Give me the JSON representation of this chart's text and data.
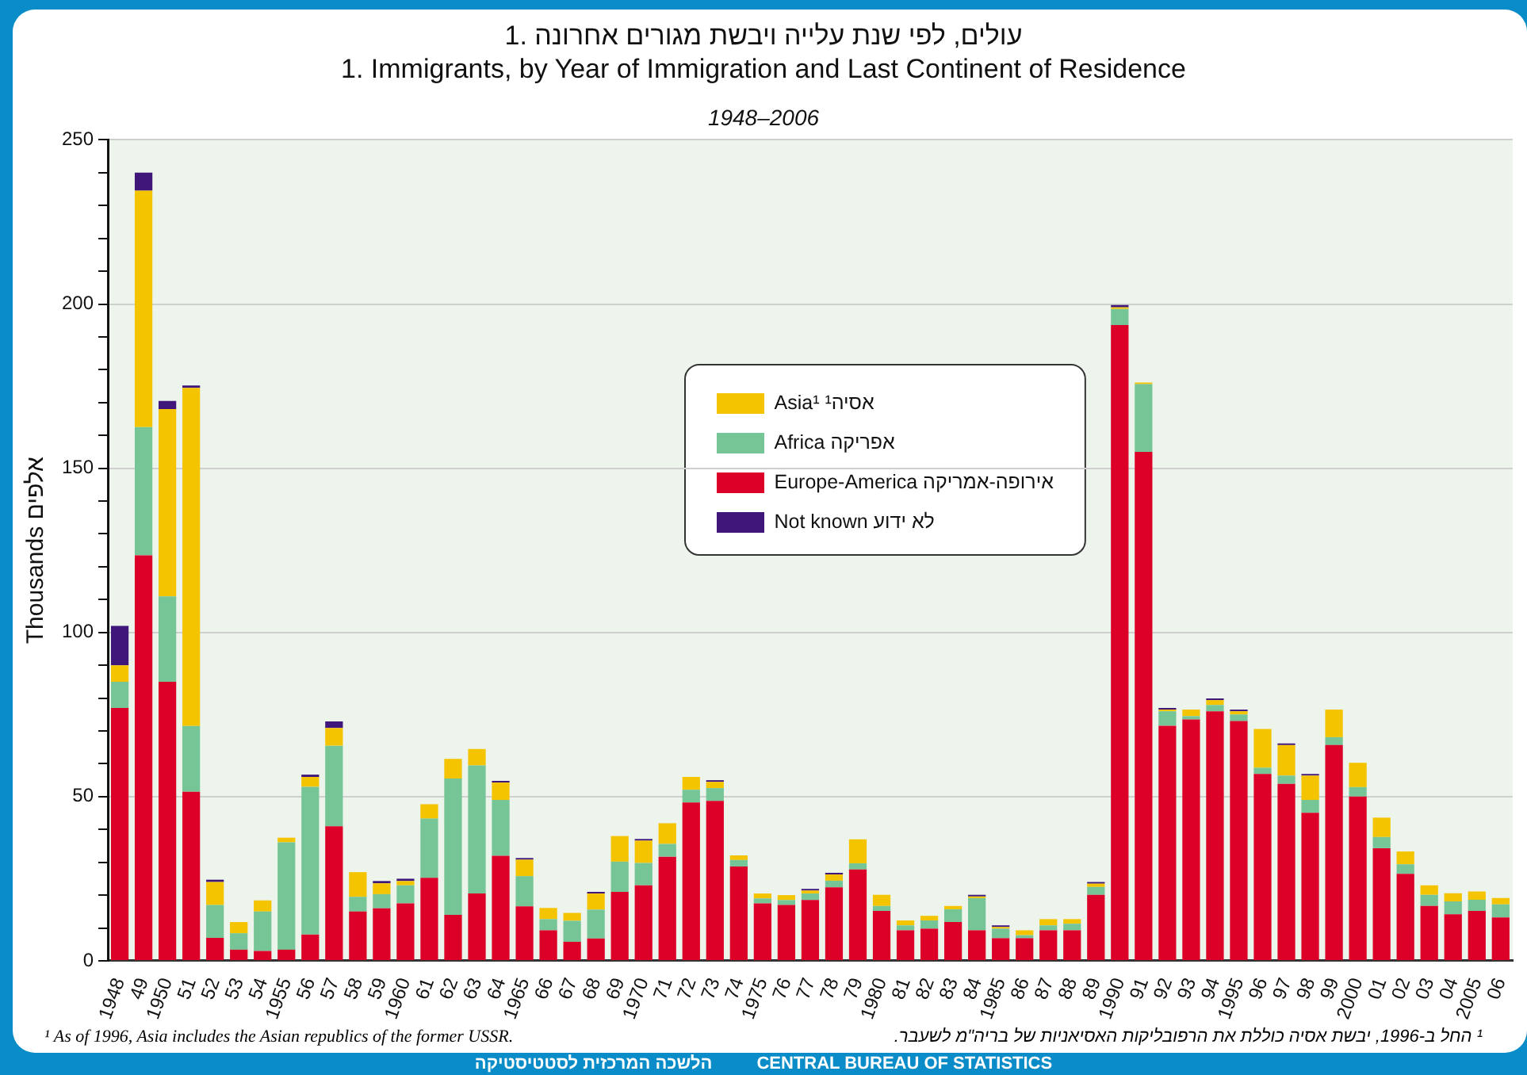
{
  "chart_data": {
    "type": "bar",
    "stacked": true,
    "title": "1. עולים, לפי שנת עלייה ויבשת מגורים אחרונה\n1. Immigrants, by Year of Immigration and Last Continent of Residence",
    "subtitle": "1948–2006",
    "ylabel": "Thousands אלפים",
    "categories": [
      "1948",
      "49",
      "1950",
      "51",
      "52",
      "53",
      "54",
      "1955",
      "56",
      "57",
      "58",
      "59",
      "1960",
      "61",
      "62",
      "63",
      "64",
      "1965",
      "66",
      "67",
      "68",
      "69",
      "1970",
      "71",
      "72",
      "73",
      "74",
      "1975",
      "76",
      "77",
      "78",
      "79",
      "1980",
      "81",
      "82",
      "83",
      "84",
      "1985",
      "86",
      "87",
      "88",
      "89",
      "1990",
      "91",
      "92",
      "93",
      "94",
      "1995",
      "96",
      "97",
      "98",
      "99",
      "2000",
      "01",
      "02",
      "03",
      "04",
      "2005",
      "06"
    ],
    "series": [
      {
        "name": "Europe-America אירופה-אמריקה",
        "color": "#dc0028",
        "values": [
          77,
          123.5,
          85,
          51.5,
          7,
          3.4,
          3,
          3.4,
          8,
          41,
          15,
          16,
          17.5,
          25.3,
          14,
          20.5,
          32,
          16.6,
          9.3,
          5.8,
          6.8,
          21,
          23,
          31.7,
          48.2,
          48.7,
          28.7,
          17.5,
          17,
          18.5,
          22.4,
          27.8,
          15.2,
          9.3,
          9.8,
          11.8,
          9.3,
          6.9,
          6.9,
          9.3,
          9.3,
          20.1,
          193.6,
          155,
          71.6,
          73.5,
          76,
          73,
          56.9,
          53.9,
          45.1,
          65.7,
          50,
          34.3,
          26.5,
          16.7,
          14.2,
          15.2,
          13.2
        ]
      },
      {
        "name": "Africa אפריקה",
        "color": "#76c597",
        "values": [
          8,
          39,
          26,
          20,
          10,
          5,
          12,
          32.7,
          45,
          24.5,
          4.5,
          4.3,
          5.5,
          18,
          41.5,
          39,
          17,
          9.2,
          3.4,
          6.4,
          8.8,
          9.2,
          6.8,
          3.9,
          3.9,
          3.9,
          2,
          1.5,
          1.5,
          2,
          2,
          1.9,
          1.5,
          1.5,
          2.5,
          3.9,
          9.8,
          2.9,
          0.9,
          1.5,
          2,
          2.4,
          4.9,
          20.6,
          4.4,
          1,
          1.9,
          2,
          1.9,
          2.5,
          3.9,
          2.4,
          2.9,
          3.4,
          2.9,
          3.4,
          3.9,
          3.4,
          4
        ]
      },
      {
        "name": "Asia¹ אסיה¹",
        "color": "#f5c400",
        "values": [
          5,
          72,
          57,
          103,
          7,
          3.4,
          3.4,
          1.4,
          3,
          5.4,
          7.5,
          3.3,
          1.3,
          4.4,
          6,
          5,
          5.3,
          5,
          3.4,
          2.4,
          4.9,
          7.8,
          6.8,
          6.3,
          3.9,
          1.9,
          1.4,
          1.5,
          1.5,
          0.9,
          1.9,
          7.3,
          3.4,
          1.5,
          1.4,
          1,
          0.5,
          0.5,
          1.5,
          1.9,
          1.4,
          1,
          0.5,
          0.5,
          0.5,
          2,
          1.5,
          1,
          11.8,
          9.3,
          7.4,
          8.4,
          7.4,
          5.9,
          3.9,
          2.9,
          2.5,
          2.5,
          1.9
        ]
      },
      {
        "name": "Not known לא ידוע",
        "color": "#3f177a",
        "values": [
          12,
          5.5,
          2.5,
          0.7,
          0.7,
          null,
          null,
          null,
          0.7,
          2,
          null,
          0.7,
          0.7,
          null,
          null,
          null,
          0.5,
          0.5,
          null,
          null,
          0.5,
          null,
          0.5,
          null,
          null,
          0.5,
          null,
          null,
          null,
          0.5,
          0.5,
          null,
          null,
          null,
          null,
          null,
          0.5,
          0.5,
          null,
          null,
          null,
          0.5,
          0.7,
          null,
          0.5,
          null,
          0.5,
          0.5,
          null,
          0.5,
          0.5,
          null,
          null,
          null,
          null,
          null,
          null,
          null,
          null
        ]
      }
    ],
    "ylim": [
      0,
      250
    ],
    "yticks": [
      0,
      {
        "value": 10,
        "label": null
      },
      {
        "value": 20,
        "label": null
      },
      {
        "value": 30,
        "label": null
      },
      {
        "value": 40,
        "label": null
      },
      50,
      {
        "value": 60,
        "label": null
      },
      {
        "value": 70,
        "label": null
      },
      {
        "value": 80,
        "label": null
      },
      {
        "value": 90,
        "label": null
      },
      100,
      {
        "value": 110,
        "label": null
      },
      {
        "value": 120,
        "label": null
      },
      {
        "value": 130,
        "label": null
      },
      {
        "value": 140,
        "label": null
      },
      150,
      {
        "value": 160,
        "label": null
      },
      {
        "value": 170,
        "label": null
      },
      {
        "value": 180,
        "label": null
      },
      {
        "value": 190,
        "label": null
      },
      200,
      {
        "value": 210,
        "label": null
      },
      {
        "value": 220,
        "label": null
      },
      {
        "value": 230,
        "label": null
      },
      {
        "value": 240,
        "label": null
      },
      250
    ],
    "grid": "y",
    "legend": "top",
    "annotations": [
      "¹ As of 1996, Asia includes the Asian republics of the former USSR.",
      "¹ החל ב-1996, יבשת אסיה כוללת את הרפובליקות האסיאניות של בריה\"מ לשעבר.",
      "הלשכה המרכזית לסטטיסטיקה",
      "CENTRAL BUREAU OF STATISTICS"
    ]
  }
}
